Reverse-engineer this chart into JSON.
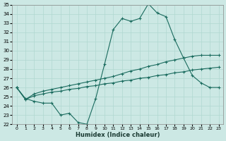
{
  "xlabel": "Humidex (Indice chaleur)",
  "background_color": "#cce8e4",
  "grid_color": "#b0d8d0",
  "line_color": "#1a6b5e",
  "xlim": [
    -0.5,
    23.5
  ],
  "ylim": [
    22,
    35
  ],
  "xticks": [
    0,
    1,
    2,
    3,
    4,
    5,
    6,
    7,
    8,
    9,
    10,
    11,
    12,
    13,
    14,
    15,
    16,
    17,
    18,
    19,
    20,
    21,
    22,
    23
  ],
  "yticks": [
    22,
    23,
    24,
    25,
    26,
    27,
    28,
    29,
    30,
    31,
    32,
    33,
    34,
    35
  ],
  "line1_x": [
    0,
    1,
    2,
    3,
    4,
    5,
    6,
    7,
    8,
    9,
    10,
    11,
    12,
    13,
    14,
    15,
    16,
    17,
    18,
    19,
    20,
    21,
    22,
    23
  ],
  "line1_y": [
    26.0,
    24.8,
    24.5,
    24.3,
    24.3,
    23.0,
    23.2,
    22.2,
    22.0,
    24.8,
    28.5,
    32.3,
    33.5,
    33.2,
    33.5,
    35.1,
    34.1,
    33.7,
    31.2,
    29.2,
    27.3,
    26.5,
    26.0,
    26.0
  ],
  "line2_x": [
    0,
    1,
    2,
    3,
    4,
    5,
    6,
    7,
    8,
    9,
    10,
    11,
    12,
    13,
    14,
    15,
    16,
    17,
    18,
    19,
    20,
    21,
    22,
    23
  ],
  "line2_y": [
    26.0,
    24.7,
    25.3,
    25.6,
    25.8,
    26.0,
    26.2,
    26.4,
    26.6,
    26.8,
    27.0,
    27.2,
    27.5,
    27.8,
    28.0,
    28.3,
    28.5,
    28.8,
    29.0,
    29.2,
    29.4,
    29.5,
    29.5,
    29.5
  ],
  "line3_x": [
    0,
    1,
    2,
    3,
    4,
    5,
    6,
    7,
    8,
    9,
    10,
    11,
    12,
    13,
    14,
    15,
    16,
    17,
    18,
    19,
    20,
    21,
    22,
    23
  ],
  "line3_y": [
    26.0,
    24.7,
    25.1,
    25.3,
    25.5,
    25.6,
    25.8,
    25.9,
    26.1,
    26.2,
    26.4,
    26.5,
    26.7,
    26.8,
    27.0,
    27.1,
    27.3,
    27.4,
    27.6,
    27.7,
    27.9,
    28.0,
    28.1,
    28.2
  ]
}
